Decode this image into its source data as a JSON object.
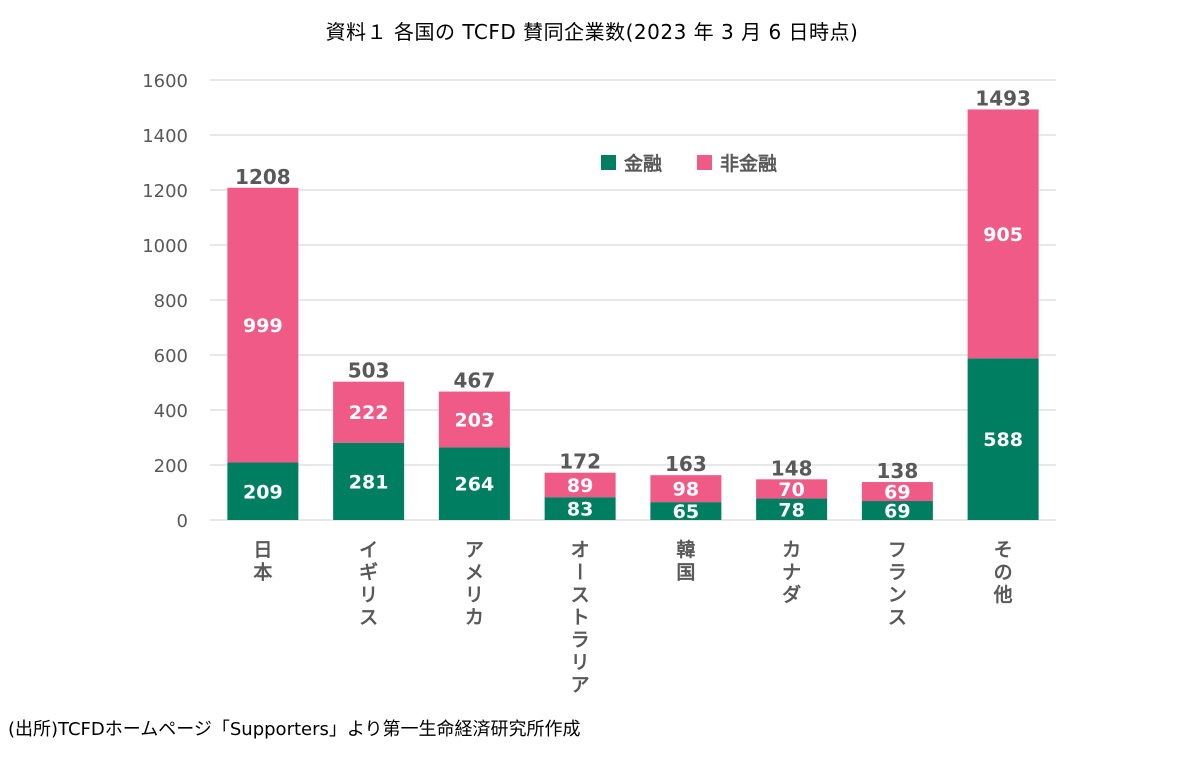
{
  "chart_data": {
    "type": "bar",
    "stacked": true,
    "title": "資料１ 各国の TCFD 賛同企業数(2023 年 3 月 6 日時点)",
    "xlabel": "",
    "ylabel": "",
    "ylim": [
      0,
      1600
    ],
    "yticks": [
      0,
      200,
      400,
      600,
      800,
      1000,
      1200,
      1400,
      1600
    ],
    "grid": true,
    "legend_position": "top-center",
    "categories": [
      "日本",
      "イギリス",
      "アメリカ",
      "オーストラリア",
      "韓国",
      "カナダ",
      "フランス",
      "その他"
    ],
    "series": [
      {
        "name": "金融",
        "color": "#007E62",
        "values": [
          209,
          281,
          264,
          83,
          65,
          78,
          69,
          588
        ]
      },
      {
        "name": "非金融",
        "color": "#F05A86",
        "values": [
          999,
          222,
          203,
          89,
          98,
          70,
          69,
          905
        ]
      }
    ],
    "totals": [
      1208,
      503,
      467,
      172,
      163,
      148,
      138,
      1493
    ]
  },
  "footer": {
    "source": "(出所)TCFDホームページ「Supporters」より第一生命経済研究所作成"
  },
  "colors": {
    "grid": "#D9D9D9",
    "text": "#595959"
  }
}
